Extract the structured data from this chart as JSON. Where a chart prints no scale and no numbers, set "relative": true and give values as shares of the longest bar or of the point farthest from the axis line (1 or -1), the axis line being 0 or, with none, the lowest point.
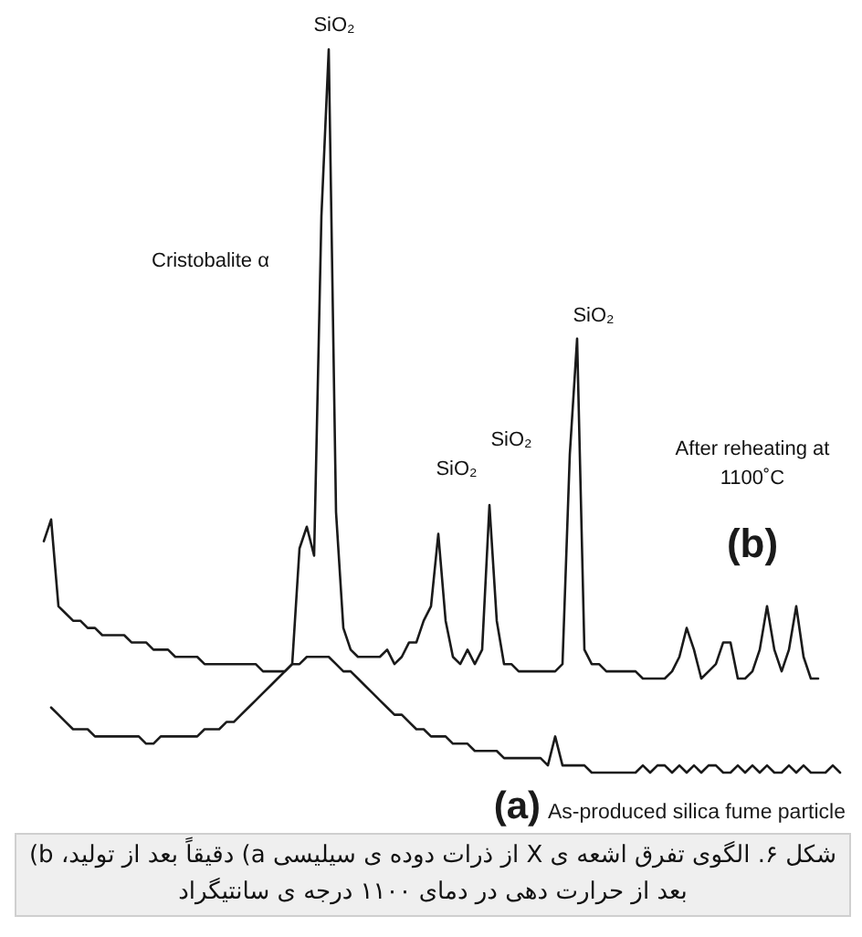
{
  "chart_data": {
    "type": "line",
    "relative": true,
    "categories": [
      null,
      null,
      null,
      null,
      null,
      null,
      null,
      null,
      null,
      null,
      null,
      null,
      null,
      null,
      null,
      null,
      null,
      null,
      null,
      null,
      null,
      null,
      null,
      null,
      null,
      null,
      null,
      null,
      null,
      null,
      null,
      null,
      null,
      null,
      null,
      null,
      null,
      null,
      null,
      null,
      null,
      null,
      null,
      null,
      null,
      null,
      null,
      null,
      null,
      null,
      null,
      null,
      null,
      null,
      null,
      null,
      null,
      null,
      null,
      null,
      null,
      null,
      null,
      null,
      null,
      null,
      null,
      null,
      null,
      null,
      null,
      null,
      null,
      null,
      null,
      null,
      null,
      null,
      null,
      null,
      null,
      null,
      null,
      null,
      null,
      null,
      null,
      null,
      null,
      null,
      null,
      null,
      null,
      null,
      null,
      null,
      null,
      null,
      null,
      null,
      null,
      null,
      null,
      null,
      null,
      null,
      null,
      null,
      null,
      null,
      null
    ],
    "series": [
      {
        "name": "(b)",
        "color": "#1a1a1a",
        "values": [
          null,
          0.32,
          0.35,
          0.23,
          0.22,
          0.21,
          0.21,
          0.2,
          0.2,
          0.19,
          0.19,
          0.19,
          0.19,
          0.18,
          0.18,
          0.18,
          0.17,
          0.17,
          0.17,
          0.16,
          0.16,
          0.16,
          0.16,
          0.15,
          0.15,
          0.15,
          0.15,
          0.15,
          0.15,
          0.15,
          0.15,
          0.14,
          0.14,
          0.14,
          0.14,
          0.15,
          0.31,
          0.34,
          0.3,
          0.77,
          1.0,
          0.36,
          0.2,
          0.17,
          0.16,
          0.16,
          0.16,
          0.16,
          0.17,
          0.15,
          0.16,
          0.18,
          0.18,
          0.21,
          0.23,
          0.33,
          0.21,
          0.16,
          0.15,
          0.17,
          0.15,
          0.17,
          0.37,
          0.21,
          0.15,
          0.15,
          0.14,
          0.14,
          0.14,
          0.14,
          0.14,
          0.14,
          0.15,
          0.44,
          0.6,
          0.17,
          0.15,
          0.15,
          0.14,
          0.14,
          0.14,
          0.14,
          0.14,
          0.13,
          0.13,
          0.13,
          0.13,
          0.14,
          0.16,
          0.2,
          0.17,
          0.13,
          0.14,
          0.15,
          0.18,
          0.18,
          0.13,
          0.13,
          0.14,
          0.17,
          0.23,
          0.17,
          0.14,
          0.17,
          0.23,
          0.16,
          0.13,
          0.13,
          null,
          null,
          null
        ]
      },
      {
        "name": "(a) As-produced silica fume particle",
        "color": "#1a1a1a",
        "values": [
          null,
          null,
          0.09,
          0.08,
          0.07,
          0.06,
          0.06,
          0.06,
          0.05,
          0.05,
          0.05,
          0.05,
          0.05,
          0.05,
          0.05,
          0.04,
          0.04,
          0.05,
          0.05,
          0.05,
          0.05,
          0.05,
          0.05,
          0.06,
          0.06,
          0.06,
          0.07,
          0.07,
          0.08,
          0.09,
          0.1,
          0.11,
          0.12,
          0.13,
          0.14,
          0.15,
          0.15,
          0.16,
          0.16,
          0.16,
          0.16,
          0.15,
          0.14,
          0.14,
          0.13,
          0.12,
          0.11,
          0.1,
          0.09,
          0.08,
          0.08,
          0.07,
          0.06,
          0.06,
          0.05,
          0.05,
          0.05,
          0.04,
          0.04,
          0.04,
          0.03,
          0.03,
          0.03,
          0.03,
          0.02,
          0.02,
          0.02,
          0.02,
          0.02,
          0.02,
          0.01,
          0.05,
          0.01,
          0.01,
          0.01,
          0.01,
          0.0,
          0.0,
          0.0,
          0.0,
          0.0,
          0.0,
          0.0,
          0.01,
          0.0,
          0.01,
          0.01,
          0.0,
          0.01,
          0.0,
          0.01,
          0.0,
          0.01,
          0.01,
          0.0,
          0.0,
          0.01,
          0.0,
          0.01,
          0.0,
          0.01,
          0.0,
          0.0,
          0.01,
          0.0,
          0.01,
          0.0,
          0.0,
          0.0,
          0.01,
          0.0
        ]
      }
    ],
    "annotations": [
      "Cristobalite α",
      "SiO₂",
      "SiO₂",
      "SiO₂",
      "SiO₂",
      "After reheating at\n1100˚C",
      "شکل ۶. الگوی تفرق اشعه ی X از ذرات دوده ی سیلیسی a) دقیقاً بعد از تولید، b) بعد از حرارت دهی در دمای ۱۱۰۰ درجه ی سانتیگراد"
    ]
  }
}
